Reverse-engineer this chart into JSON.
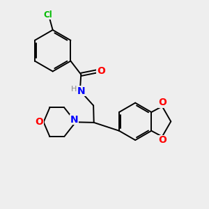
{
  "background_color": "#eeeeee",
  "bond_color": "#000000",
  "nitrogen_color": "#0000ff",
  "oxygen_color": "#ff0000",
  "chlorine_color": "#00bb00",
  "h_color": "#888888",
  "lw": 1.4,
  "figsize": [
    3.0,
    3.0
  ],
  "dpi": 100,
  "xlim": [
    0,
    10
  ],
  "ylim": [
    0,
    10
  ]
}
